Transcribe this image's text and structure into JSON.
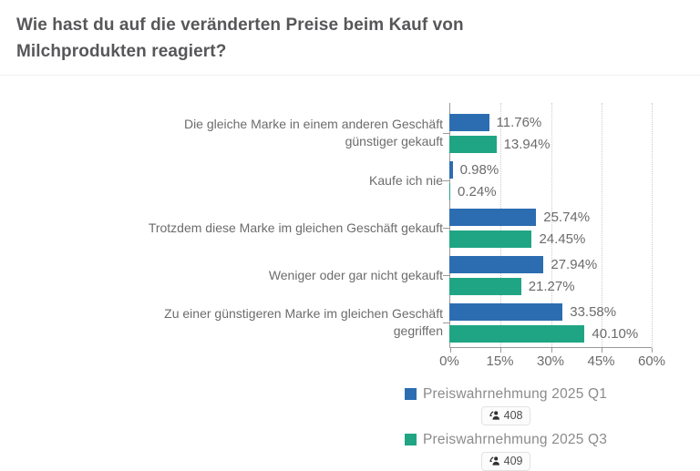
{
  "title": "Wie hast du auf die veränderten Preise beim Kauf von Milchprodukten reagiert?",
  "colors": {
    "series_q1": "#2c6db2",
    "series_q3": "#20a584",
    "axis": "#9a9a9a",
    "gridline": "#cbcbcb",
    "title_text": "#57575a",
    "label_text": "#6c6c6c"
  },
  "chart_data": {
    "type": "bar",
    "orientation": "horizontal",
    "title": "Wie hast du auf die veränderten Preise beim Kauf von Milchprodukten reagiert?",
    "categories": [
      "Die gleiche Marke in einem anderen Geschäft günstiger gekauft",
      "Kaufe ich nie",
      "Trotzdem diese Marke im gleichen Geschäft gekauft",
      "Weniger oder gar nicht gekauft",
      "Zu einer günstigeren Marke im gleichen Geschäft gegriffen"
    ],
    "series": [
      {
        "name": "Preiswahrnehmung 2025 Q1",
        "color": "#2c6db2",
        "responses": "408",
        "values": [
          11.76,
          0.98,
          25.74,
          27.94,
          33.58
        ]
      },
      {
        "name": "Preiswahrnehmung 2025 Q3",
        "color": "#20a584",
        "responses": "409",
        "values": [
          13.94,
          0.24,
          24.45,
          21.27,
          40.1
        ]
      }
    ],
    "value_label_suffix": "%",
    "x_ticks": [
      "0%",
      "15%",
      "30%",
      "45%",
      "60%"
    ],
    "xlim": [
      0,
      60
    ],
    "xlabel": "",
    "ylabel": "",
    "grid": "vertical-dotted",
    "legend_position": "bottom"
  }
}
